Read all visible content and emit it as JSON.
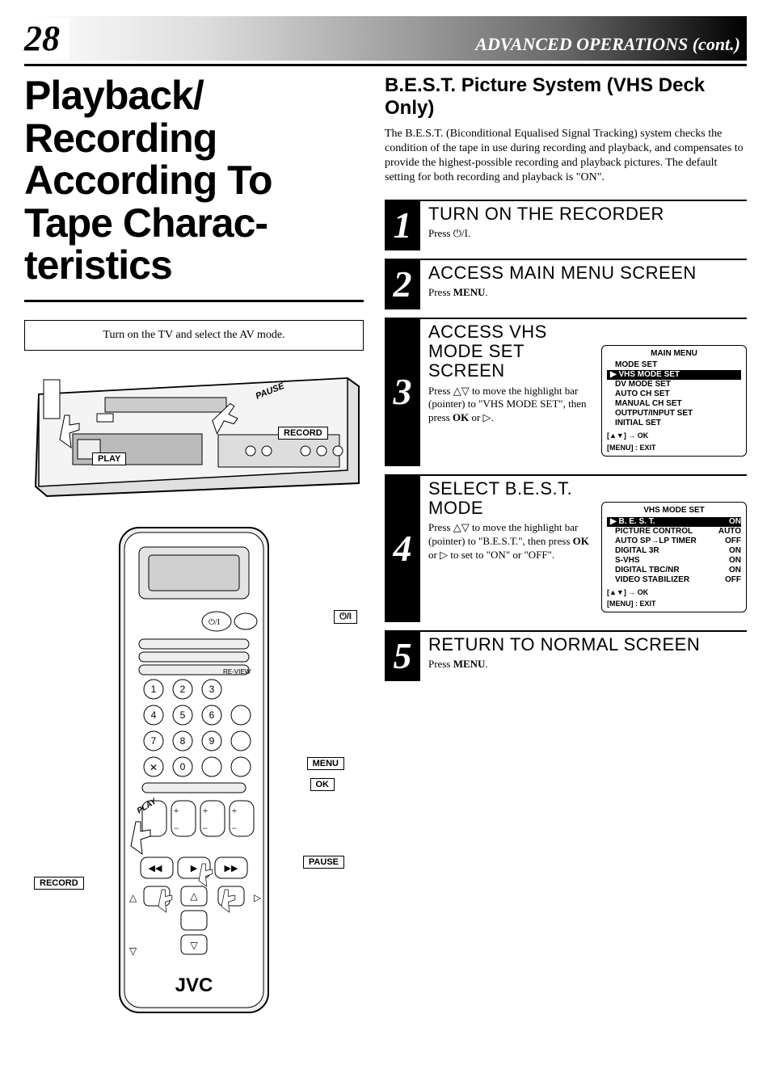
{
  "header": {
    "page_number": "28",
    "section": "ADVANCED OPERATIONS (cont.)"
  },
  "left": {
    "title": "Playback/ Recording According To Tape Charac-teristics",
    "note": "Turn on the TV and select the AV mode.",
    "vcr_labels": {
      "pause": "PAUSE",
      "record": "RECORD",
      "play": "PLAY"
    },
    "remote_labels": {
      "power": "⏻/I",
      "menu": "MENU",
      "ok": "OK",
      "play": "PLAY",
      "pause": "PAUSE",
      "record": "RECORD",
      "right": "▷",
      "up": "△",
      "down": "▽"
    },
    "brand": "JVC"
  },
  "right": {
    "subtitle": "B.E.S.T. Picture System (VHS Deck Only)",
    "intro": "The B.E.S.T. (Biconditional Equalised Signal Tracking) system checks the condition of the tape in use during recording and playback, and compensates to provide the highest-possible recording and playback pictures. The default setting for both recording and playback is \"ON\".",
    "steps": [
      {
        "n": "1",
        "title": "TURN ON THE RECORDER",
        "instr_prefix": "Press ",
        "instr_suffix": "."
      },
      {
        "n": "2",
        "title": "ACCESS MAIN MENU SCREEN",
        "instr": "Press <b>MENU</b>."
      },
      {
        "n": "3",
        "title": "ACCESS VHS MODE SET SCREEN",
        "instr": "Press △▽ to move the highlight bar (pointer) to \"VHS MODE SET\", then press <b>OK</b> or ▷."
      },
      {
        "n": "4",
        "title": "SELECT B.E.S.T. MODE",
        "instr": "Press △▽ to move the highlight bar (pointer) to \"B.E.S.T.\", then press <b>OK</b> or ▷ to set to \"ON\" or \"OFF\"."
      },
      {
        "n": "5",
        "title": "RETURN TO NORMAL SCREEN",
        "instr": "Press <b>MENU</b>."
      }
    ],
    "main_menu": {
      "title": "MAIN MENU",
      "items": [
        "MODE SET",
        "VHS MODE SET",
        "DV MODE SET",
        "AUTO CH SET",
        "MANUAL CH SET",
        "OUTPUT/INPUT SET",
        "INITIAL SET"
      ],
      "highlight_index": 1,
      "footer1": "[▲▼] → OK",
      "footer2": "[MENU] : EXIT"
    },
    "vhs_menu": {
      "title": "VHS MODE SET",
      "items": [
        {
          "l": "B. E. S. T.",
          "v": "ON"
        },
        {
          "l": "PICTURE CONTROL",
          "v": "AUTO"
        },
        {
          "l": "AUTO SP→LP TIMER",
          "v": "OFF"
        },
        {
          "l": "DIGITAL 3R",
          "v": "ON"
        },
        {
          "l": "S-VHS",
          "v": "ON"
        },
        {
          "l": "DIGITAL TBC/NR",
          "v": "ON"
        },
        {
          "l": "VIDEO STABILIZER",
          "v": "OFF"
        }
      ],
      "highlight_index": 0,
      "footer1": "[▲▼] → OK",
      "footer2": "[MENU] : EXIT"
    }
  }
}
